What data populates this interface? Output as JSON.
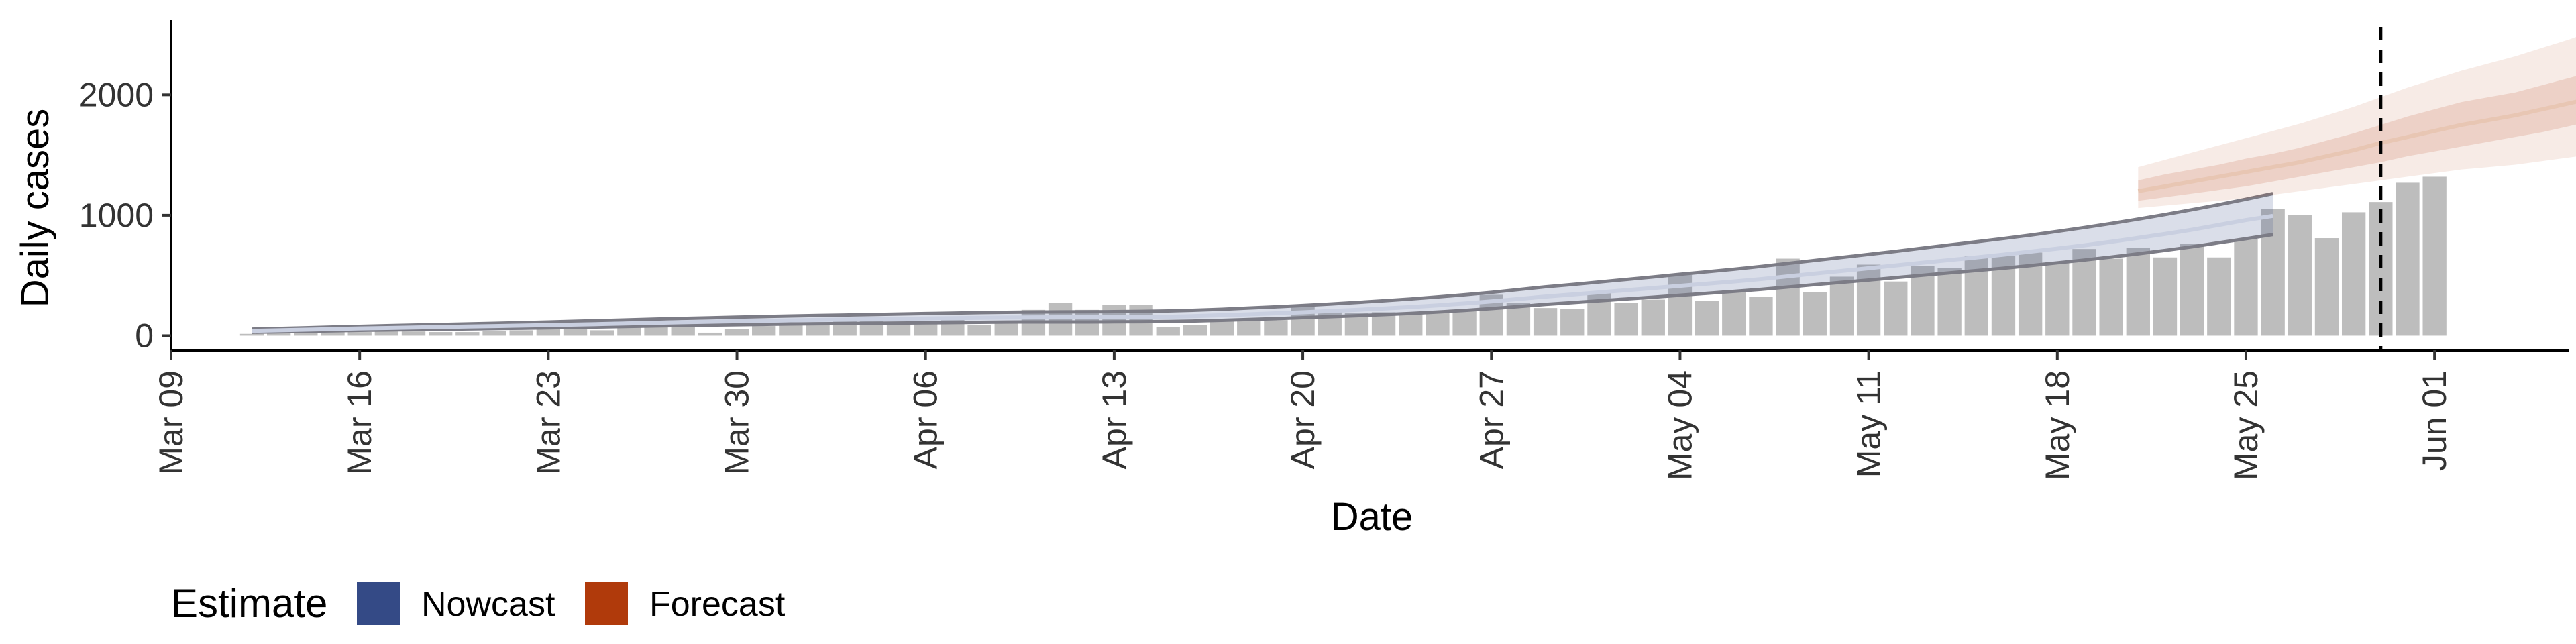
{
  "chart_data": {
    "type": "bar",
    "xlabel": "Date",
    "ylabel": "Daily cases",
    "x_tick_labels": [
      "Mar 09",
      "Mar 16",
      "Mar 23",
      "Mar 30",
      "Apr 06",
      "Apr 13",
      "Apr 20",
      "Apr 27",
      "May 04",
      "May 11",
      "May 18",
      "May 25",
      "Jun 01"
    ],
    "y_tick_labels": [
      "0",
      "1000",
      "2000"
    ],
    "y_ticks": [
      0,
      1000,
      2000
    ],
    "ylim": [
      -120,
      2620
    ],
    "xlim": [
      "2020-03-09",
      "2020-06-06"
    ],
    "bar_start_date": "2020-03-12",
    "bar_color": "#bdbdbd",
    "bar_values": [
      15,
      20,
      25,
      30,
      30,
      35,
      35,
      30,
      30,
      40,
      45,
      55,
      70,
      45,
      90,
      95,
      100,
      25,
      55,
      80,
      110,
      110,
      120,
      150,
      115,
      120,
      140,
      90,
      125,
      215,
      270,
      215,
      255,
      255,
      75,
      90,
      120,
      130,
      130,
      240,
      200,
      190,
      195,
      185,
      200,
      210,
      340,
      270,
      230,
      220,
      360,
      270,
      300,
      505,
      290,
      380,
      320,
      640,
      360,
      490,
      590,
      450,
      580,
      560,
      660,
      660,
      690,
      610,
      720,
      640,
      730,
      650,
      760,
      650,
      800,
      1050,
      1000,
      810,
      1025,
      1110,
      1270,
      1320
    ],
    "nowcast_start_date": "2020-03-12",
    "nowcast_median": [
      40,
      45,
      50,
      55,
      60,
      64,
      68,
      72,
      76,
      80,
      84,
      88,
      92,
      97,
      102,
      107,
      112,
      116,
      120,
      124,
      128,
      131,
      134,
      137,
      140,
      143,
      146,
      149,
      151,
      152,
      153,
      153,
      154,
      155,
      158,
      163,
      170,
      178,
      186,
      195,
      205,
      215,
      226,
      238,
      252,
      268,
      285,
      305,
      325,
      342,
      360,
      378,
      396,
      414,
      432,
      450,
      470,
      493,
      516,
      538,
      560,
      583,
      606,
      628,
      650,
      673,
      698,
      723,
      750,
      780,
      812,
      845,
      880,
      920,
      960,
      995
    ],
    "nowcast_upper": [
      55,
      60,
      66,
      72,
      78,
      83,
      88,
      93,
      98,
      103,
      108,
      114,
      120,
      126,
      132,
      138,
      144,
      149,
      154,
      159,
      164,
      168,
      172,
      176,
      180,
      184,
      188,
      192,
      195,
      197,
      198,
      199,
      200,
      202,
      206,
      212,
      220,
      230,
      240,
      251,
      263,
      276,
      290,
      305,
      322,
      340,
      360,
      383,
      406,
      425,
      446,
      467,
      488,
      510,
      531,
      552,
      575,
      600,
      625,
      650,
      675,
      700,
      727,
      754,
      780,
      807,
      835,
      866,
      898,
      932,
      968,
      1006,
      1046,
      1088,
      1133,
      1180
    ],
    "nowcast_lower": [
      28,
      32,
      36,
      40,
      44,
      47,
      50,
      53,
      56,
      59,
      62,
      65,
      69,
      73,
      77,
      81,
      85,
      88,
      91,
      94,
      97,
      99,
      101,
      103,
      105,
      107,
      109,
      111,
      113,
      114,
      114,
      114,
      115,
      116,
      118,
      122,
      128,
      135,
      142,
      150,
      158,
      166,
      175,
      185,
      197,
      210,
      225,
      242,
      260,
      275,
      290,
      305,
      320,
      336,
      352,
      368,
      385,
      404,
      424,
      443,
      462,
      482,
      502,
      522,
      541,
      560,
      582,
      605,
      628,
      653,
      680,
      708,
      738,
      772,
      805,
      840
    ],
    "forecast_start_date": "2020-05-21",
    "forecast_median": [
      1200,
      1240,
      1280,
      1320,
      1360,
      1400,
      1440,
      1490,
      1540,
      1600,
      1650,
      1700,
      1750,
      1790,
      1830,
      1880,
      1930,
      1980,
      2050
    ],
    "forecast_inner_upper": [
      1290,
      1340,
      1380,
      1420,
      1470,
      1510,
      1560,
      1620,
      1680,
      1750,
      1820,
      1880,
      1940,
      1980,
      2020,
      2080,
      2140,
      2200,
      2270
    ],
    "forecast_inner_lower": [
      1120,
      1150,
      1180,
      1210,
      1240,
      1280,
      1320,
      1360,
      1400,
      1440,
      1490,
      1530,
      1570,
      1610,
      1650,
      1690,
      1740,
      1790,
      1840
    ],
    "forecast_outer_upper": [
      1400,
      1460,
      1520,
      1580,
      1640,
      1700,
      1760,
      1830,
      1900,
      1980,
      2060,
      2130,
      2200,
      2260,
      2320,
      2390,
      2460,
      2540,
      2620
    ],
    "forecast_outer_lower": [
      1060,
      1080,
      1100,
      1120,
      1140,
      1170,
      1200,
      1230,
      1260,
      1290,
      1320,
      1350,
      1380,
      1400,
      1420,
      1450,
      1480,
      1510,
      1540
    ],
    "vline_date": "2020-05-30",
    "series": [
      {
        "name": "Nowcast",
        "color": "#344a86"
      },
      {
        "name": "Forecast",
        "color": "#b03a0b"
      }
    ],
    "legend_title": "Estimate",
    "legend_position": "bottom-left",
    "grid": false
  }
}
